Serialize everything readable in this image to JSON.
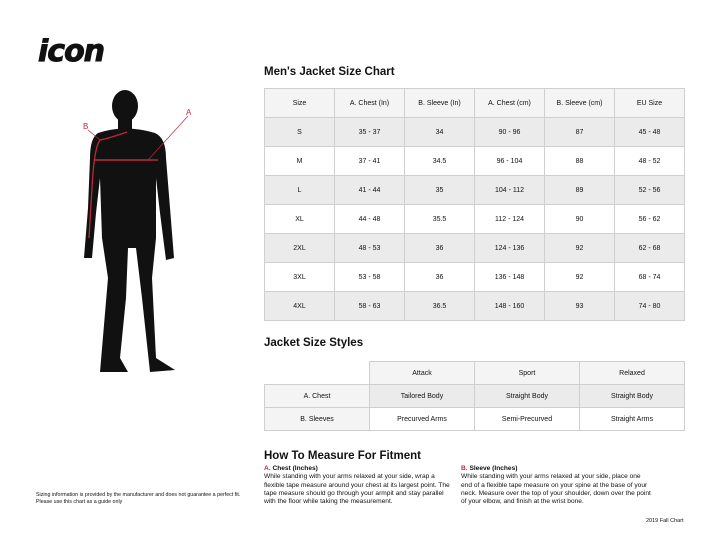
{
  "brand": {
    "logo_text": "icon"
  },
  "figure": {
    "label_a": "A",
    "label_b": "B",
    "accent": "#c0283a"
  },
  "size_chart": {
    "title": "Men's Jacket Size Chart",
    "headers": [
      "Size",
      "A. Chest (In)",
      "B. Sleeve (In)",
      "A. Chest (cm)",
      "B. Sleeve (cm)",
      "EU Size"
    ],
    "rows": [
      [
        "S",
        "35 - 37",
        "34",
        "90 - 96",
        "87",
        "45 - 48"
      ],
      [
        "M",
        "37 - 41",
        "34.5",
        "96 - 104",
        "88",
        "48 - 52"
      ],
      [
        "L",
        "41 - 44",
        "35",
        "104 - 112",
        "89",
        "52 - 56"
      ],
      [
        "XL",
        "44 - 48",
        "35.5",
        "112 - 124",
        "90",
        "56 - 62"
      ],
      [
        "2XL",
        "48 - 53",
        "36",
        "124 - 136",
        "92",
        "62 - 68"
      ],
      [
        "3XL",
        "53 - 58",
        "36",
        "136 - 148",
        "92",
        "68 - 74"
      ],
      [
        "4XL",
        "58 - 63",
        "36.5",
        "148 - 160",
        "93",
        "74 - 80"
      ]
    ]
  },
  "styles": {
    "title": "Jacket Size Styles",
    "headers": [
      "",
      "Attack",
      "Sport",
      "Relaxed"
    ],
    "rows": [
      [
        "A. Chest",
        "Tailored Body",
        "Straight Body",
        "Straight Body"
      ],
      [
        "B. Sleeves",
        "Precurved Arms",
        "Semi-Precurved",
        "Straight Arms"
      ]
    ]
  },
  "measure": {
    "title": "How To Measure For Fitment",
    "chest": {
      "letter": "A.",
      "heading": "Chest (Inches)",
      "body": "While standing with your arms relaxed at your side, wrap a flexible tape measure around your chest at its largest point. The tape measure should go through your armpit and stay parallel with the floor while taking the measurement."
    },
    "sleeve": {
      "letter": "B.",
      "heading": "Sleeve (Inches)",
      "body": "While standing with your arms relaxed at your side, place one end of a flexible tape measure on your spine at the base of your neck. Measure over the top of your shoulder, down over the point of your elbow, and finish at the wrist bone."
    }
  },
  "disclaimer": "Sizing information is provided by the manufacturer and does not guarantee a perfect fit. Please use this chart as a guide only",
  "footer": "2019 Fall Chart"
}
